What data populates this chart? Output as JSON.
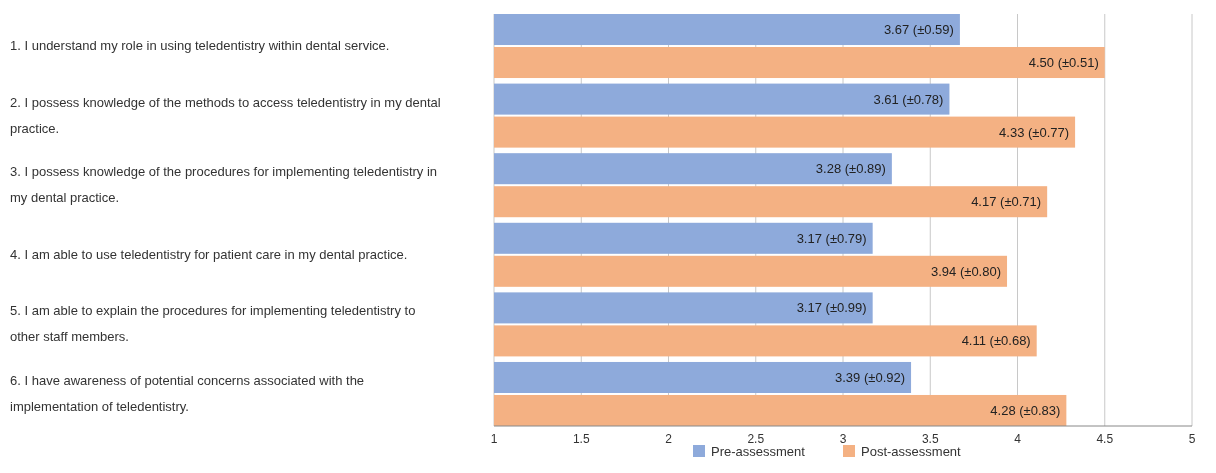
{
  "chart_data": {
    "type": "bar",
    "orientation": "horizontal",
    "categories": [
      "1. I understand my role in using teledentistry within dental service.",
      "2. I possess knowledge of the methods to access teledentistry in my dental practice.",
      "3. I possess knowledge of the procedures for implementing teledentistry in my dental practice.",
      "4. I am able to use teledentistry for patient care in my dental practice.",
      "5. I am able to explain the procedures for implementing teledentistry to other staff members.",
      "6. I have awareness of potential concerns associated with the implementation of teledentistry."
    ],
    "series": [
      {
        "name": "Pre-assessment",
        "color": "#8eaadb",
        "values": [
          3.67,
          3.61,
          3.28,
          3.17,
          3.17,
          3.39
        ],
        "value_labels": [
          "3.67 (±0.59)",
          "3.61 (±0.78)",
          "3.28 (±0.89)",
          "3.17 (±0.79)",
          "3.17 (±0.99)",
          "3.39 (±0.92)"
        ]
      },
      {
        "name": "Post-assessment",
        "color": "#f4b183",
        "values": [
          4.5,
          4.33,
          4.17,
          3.94,
          4.11,
          4.28
        ],
        "value_labels": [
          "4.50 (±0.51)",
          "4.33 (±0.77)",
          "4.17 (±0.71)",
          "3.94 (±0.80)",
          "4.11 (±0.68)",
          "4.28 (±0.83)"
        ]
      }
    ],
    "xlim": [
      1,
      5
    ],
    "xticks": [
      1,
      1.5,
      2,
      2.5,
      3,
      3.5,
      4,
      4.5,
      5
    ],
    "grid": "x",
    "legend": "bottom"
  }
}
